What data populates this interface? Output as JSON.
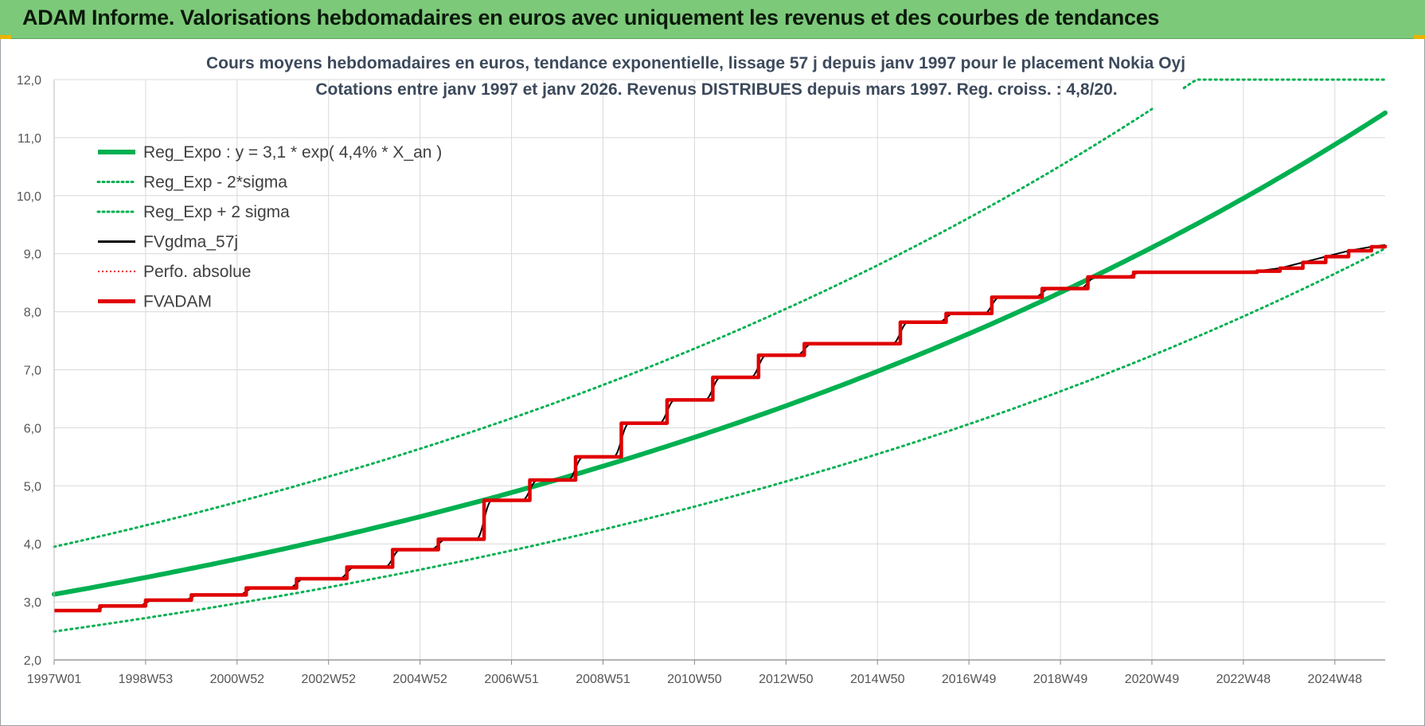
{
  "banner": {
    "title": "ADAM Informe. Valorisations hebdomadaires en euros avec uniquement les revenus et des courbes de tendances"
  },
  "colors": {
    "banner_bg": "#7dc97a",
    "trend": "#00b050",
    "fvgdma": "#000000",
    "perfo": "#e00000",
    "fvadam": "#e00000",
    "grid": "#d9d9d9"
  },
  "chart_data": {
    "type": "line",
    "title_lines": [
      "Cours moyens hebdomadaires en euros, tendance exponentielle, lissage 57 j depuis janv 1997 pour le placement Nokia Oyj",
      "Cotations entre janv 1997 et janv 2026. Revenus DISTRIBUES depuis mars 1997.  Reg. croiss. : 4,8/20."
    ],
    "x_tick_labels": [
      "1997W01",
      "1998W53",
      "2000W52",
      "2002W52",
      "2004W52",
      "2006W51",
      "2008W51",
      "2010W50",
      "2012W50",
      "2014W50",
      "2016W49",
      "2018W49",
      "2020W49",
      "2022W48",
      "2024W48"
    ],
    "x_range": [
      1997.0,
      2026.1
    ],
    "y_range": [
      2.0,
      12.0
    ],
    "y_ticks": [
      "2,0",
      "3,0",
      "4,0",
      "5,0",
      "6,0",
      "7,0",
      "8,0",
      "9,0",
      "10,0",
      "11,0",
      "12,0"
    ],
    "grid": true,
    "legend_position": "top-left",
    "legend": [
      {
        "label": "Reg_Expo : y = 3,1 * exp( 4,4% *  X_an )",
        "style": "solid-thick-green"
      },
      {
        "label": "Reg_Exp - 2*sigma",
        "style": "dotted-green"
      },
      {
        "label": "Reg_Exp + 2 sigma",
        "style": "dotted-green"
      },
      {
        "label": "FVgdma_57j",
        "style": "solid-black"
      },
      {
        "label": "Perfo. absolue",
        "style": "dotted-red"
      },
      {
        "label": "FVADAM",
        "style": "solid-thick-red"
      }
    ],
    "series": [
      {
        "name": "Reg_Expo : y = 3,1 * exp( 4,4% *  X_an )",
        "kind": "exp",
        "a": 3.13,
        "k": 0.0445,
        "x0": 1997.0,
        "cap": 12.0
      },
      {
        "name": "Reg_Exp - 2*sigma",
        "kind": "exp",
        "a": 2.49,
        "k": 0.0445,
        "x0": 1997.0,
        "cap": 12.0
      },
      {
        "name": "Reg_Exp + 2 sigma",
        "kind": "exp",
        "a": 3.95,
        "k": 0.0445,
        "x0": 1997.0,
        "cap": 12.0
      },
      {
        "name": "FVADAM",
        "steps": [
          [
            1997.0,
            2.85
          ],
          [
            1998.0,
            2.93
          ],
          [
            1999.0,
            3.03
          ],
          [
            2000.0,
            3.12
          ],
          [
            2001.2,
            3.24
          ],
          [
            2002.3,
            3.4
          ],
          [
            2003.4,
            3.6
          ],
          [
            2004.4,
            3.9
          ],
          [
            2005.4,
            4.08
          ],
          [
            2006.4,
            4.75
          ],
          [
            2007.4,
            5.1
          ],
          [
            2008.4,
            5.5
          ],
          [
            2009.4,
            6.08
          ],
          [
            2010.4,
            6.48
          ],
          [
            2011.4,
            6.87
          ],
          [
            2012.4,
            7.25
          ],
          [
            2013.4,
            7.45
          ],
          [
            2015.5,
            7.82
          ],
          [
            2016.5,
            7.97
          ],
          [
            2017.5,
            8.25
          ],
          [
            2018.6,
            8.4
          ],
          [
            2019.6,
            8.6
          ],
          [
            2020.6,
            8.68
          ],
          [
            2022.0,
            8.68
          ]
        ],
        "tail": [
          [
            2023.3,
            8.7
          ],
          [
            2023.8,
            8.75
          ],
          [
            2024.3,
            8.85
          ],
          [
            2024.8,
            8.95
          ],
          [
            2025.3,
            9.05
          ],
          [
            2025.8,
            9.12
          ],
          [
            2026.1,
            9.15
          ]
        ]
      }
    ]
  }
}
